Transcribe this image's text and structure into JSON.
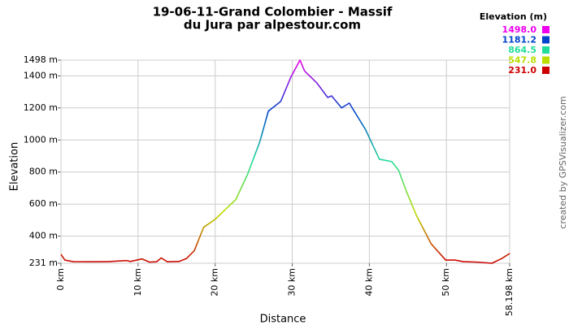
{
  "chart_data": {
    "type": "line",
    "title": [
      "19-06-11-Grand Colombier - Massif",
      "du Jura par alpestour.com"
    ],
    "x_label": "Distance",
    "y_label": "Elevation",
    "credit": "created by GPSVisualizer.com",
    "legend_title": "Elevation (m)",
    "color_scale": [
      {
        "value": 1498.0,
        "label": "1498.0",
        "color": "#ee00ee"
      },
      {
        "value": 1181.2,
        "label": "1181.2",
        "color": "#0044cc"
      },
      {
        "value": 864.5,
        "label": "864.5",
        "color": "#22dd99"
      },
      {
        "value": 547.8,
        "label": "547.8",
        "color": "#bbdd00"
      },
      {
        "value": 231.0,
        "label": "231.0",
        "color": "#cc0000"
      }
    ],
    "x": [
      0,
      0.5,
      1.6,
      4,
      6,
      8.5,
      9,
      10.5,
      11.5,
      12.4,
      13,
      13.8,
      15.3,
      16.3,
      17.3,
      18.5,
      20,
      21.4,
      22.7,
      24.2,
      25.8,
      26.9,
      28.5,
      29.8,
      31,
      31.6,
      33.2,
      34.6,
      35.1,
      36.4,
      37.4,
      37.9,
      39.5,
      41.3,
      42.9,
      43.8,
      44.8,
      46.1,
      48,
      49.9,
      51.1,
      52.2,
      54,
      55.9,
      57.2,
      58.198
    ],
    "series": [
      {
        "name": "Elevation",
        "values": [
          287,
          251,
          241,
          240,
          241,
          248,
          242,
          258,
          238,
          240,
          264,
          240,
          242,
          261,
          310,
          455,
          505,
          570,
          630,
          785,
          990,
          1180,
          1240,
          1390,
          1498,
          1430,
          1355,
          1265,
          1275,
          1200,
          1230,
          1190,
          1065,
          880,
          865,
          810,
          680,
          530,
          353,
          251,
          251,
          241,
          238,
          231,
          261,
          292
        ]
      }
    ],
    "xlim": [
      0,
      58.198
    ],
    "ylim": [
      231,
      1498
    ],
    "xticks": [
      {
        "value": 0,
        "label": "0 km"
      },
      {
        "value": 10,
        "label": "10 km"
      },
      {
        "value": 20,
        "label": "20 km"
      },
      {
        "value": 30,
        "label": "30 km"
      },
      {
        "value": 40,
        "label": "40 km"
      },
      {
        "value": 50,
        "label": "50 km"
      },
      {
        "value": 58.198,
        "label": "58.198 km"
      }
    ],
    "yticks": [
      {
        "value": 231,
        "label": "231 m"
      },
      {
        "value": 400,
        "label": "400 m"
      },
      {
        "value": 600,
        "label": "600 m"
      },
      {
        "value": 800,
        "label": "800 m"
      },
      {
        "value": 1000,
        "label": "1000 m"
      },
      {
        "value": 1200,
        "label": "1200 m"
      },
      {
        "value": 1400,
        "label": "1400 m"
      },
      {
        "value": 1498,
        "label": "1498 m"
      }
    ],
    "grid": true
  }
}
